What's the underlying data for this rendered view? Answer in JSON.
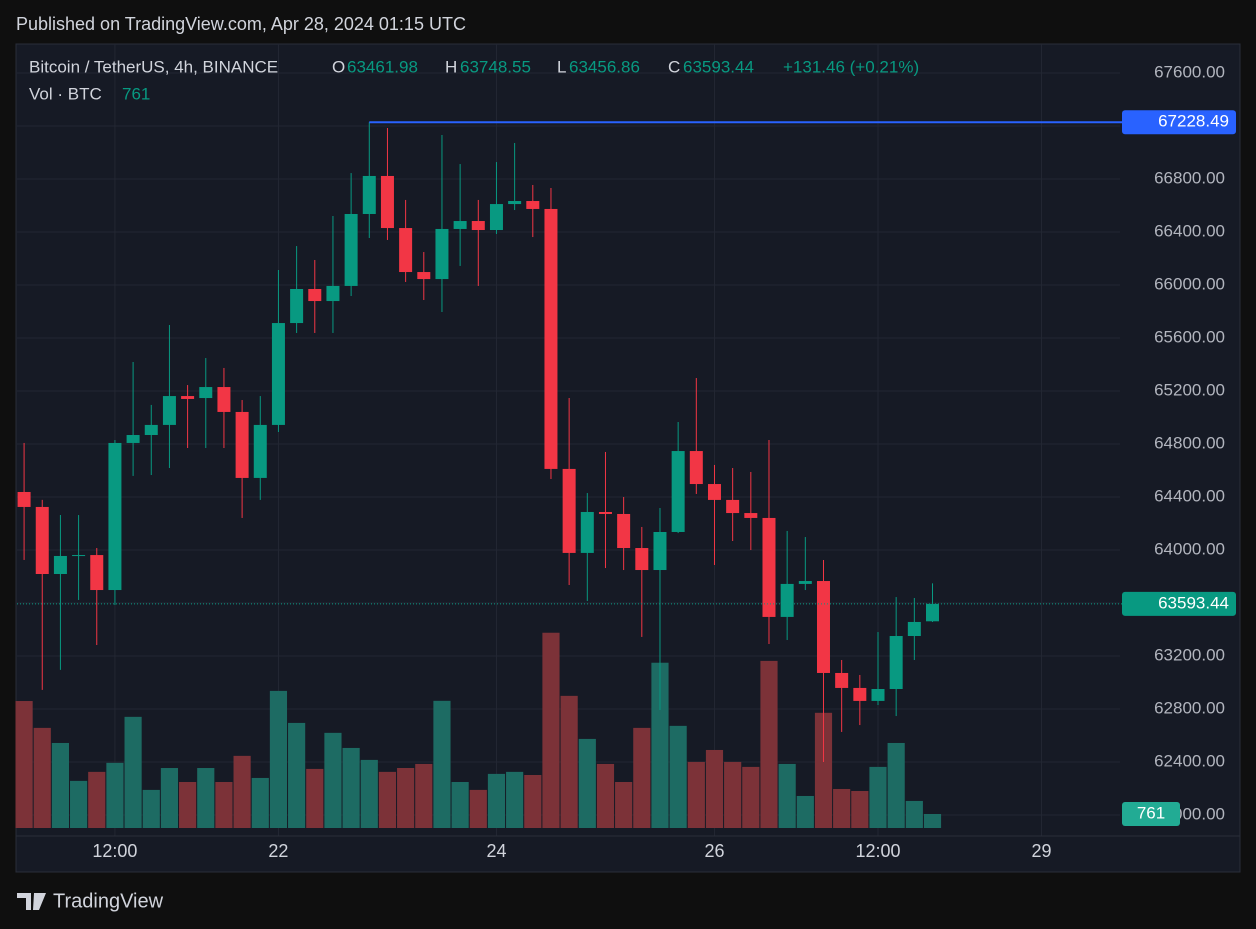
{
  "header": {
    "published": "Published on TradingView.com, Apr 28, 2024 01:15 UTC"
  },
  "footer": {
    "brand": "TradingView"
  },
  "chart_data": {
    "type": "candlestick",
    "symbol": "Bitcoin / TetherUS, 4h, BINANCE",
    "ohlc_letters": [
      "O",
      "H",
      "L",
      "C"
    ],
    "change_label": "+131.46 (+0.21%)",
    "volume_label": "Vol · BTC",
    "up_color": "#089981",
    "down_color": "#f23645",
    "volume_up_color": "#1d6b63",
    "volume_down_color": "#7c3238",
    "high_line_color": "#2962ff",
    "ohlc": [
      [
        64438,
        64808,
        63925,
        64325
      ],
      [
        64325,
        64378,
        62944,
        63819
      ],
      [
        63819,
        64264,
        63095,
        63955
      ],
      [
        63955,
        64264,
        63623,
        63962
      ],
      [
        63962,
        64015,
        63283,
        63698
      ],
      [
        63698,
        64830,
        63585,
        64808
      ],
      [
        64808,
        65419,
        64559,
        64868
      ],
      [
        64868,
        65095,
        64566,
        64944
      ],
      [
        64944,
        65698,
        64619,
        65162
      ],
      [
        65162,
        65245,
        64770,
        65140
      ],
      [
        65147,
        65449,
        64770,
        65230
      ],
      [
        65230,
        65374,
        64770,
        65042
      ],
      [
        65042,
        65132,
        64242,
        64544
      ],
      [
        64544,
        65162,
        64378,
        64944
      ],
      [
        64944,
        66113,
        64891,
        65713
      ],
      [
        65713,
        66294,
        65638,
        65970
      ],
      [
        65970,
        66189,
        65638,
        65879
      ],
      [
        65879,
        66521,
        65638,
        65993
      ],
      [
        65993,
        66845,
        65917,
        66536
      ],
      [
        66536,
        67228.49,
        66355,
        66823
      ],
      [
        66823,
        67185,
        66340,
        66430
      ],
      [
        66430,
        66642,
        66023,
        66098
      ],
      [
        66098,
        66249,
        65887,
        66045
      ],
      [
        66045,
        67132,
        65796,
        66423
      ],
      [
        66423,
        66913,
        66144,
        66483
      ],
      [
        66483,
        66642,
        65993,
        66415
      ],
      [
        66415,
        66928,
        66385,
        66611
      ],
      [
        66611,
        67072,
        66566,
        66634
      ],
      [
        66634,
        66755,
        66362,
        66574
      ],
      [
        66574,
        66732,
        64536,
        64612
      ],
      [
        64612,
        65147,
        63736,
        63978
      ],
      [
        63978,
        64430,
        63615,
        64287
      ],
      [
        64287,
        64740,
        63864,
        64272
      ],
      [
        64272,
        64400,
        63849,
        64015
      ],
      [
        64015,
        64174,
        63344,
        63849
      ],
      [
        63849,
        64317,
        62793,
        64136
      ],
      [
        64136,
        64966,
        64128,
        64747
      ],
      [
        64747,
        65298,
        64423,
        64498
      ],
      [
        64498,
        64642,
        63887,
        64378
      ],
      [
        64378,
        64619,
        64068,
        64279
      ],
      [
        64279,
        64589,
        64000,
        64242
      ],
      [
        64242,
        64830,
        63291,
        63495
      ],
      [
        63495,
        64144,
        63321,
        63744
      ],
      [
        63744,
        64098,
        63698,
        63766
      ],
      [
        63766,
        63925,
        62400,
        63072
      ],
      [
        63072,
        63170,
        62627,
        62959
      ],
      [
        62959,
        63057,
        62679,
        62861
      ],
      [
        62861,
        63381,
        62830,
        62951
      ],
      [
        62951,
        63645,
        62747,
        63351
      ],
      [
        63351,
        63638,
        63170,
        63457
      ],
      [
        63461.98,
        63748.55,
        63456.86,
        63593.44
      ]
    ],
    "volume": [
      6900,
      5440,
      4620,
      2560,
      3050,
      3540,
      6040,
      2070,
      3260,
      2500,
      3260,
      2500,
      3920,
      2720,
      7450,
      5710,
      3210,
      5170,
      4350,
      3700,
      3050,
      3260,
      3480,
      6910,
      2500,
      2070,
      2940,
      3050,
      2880,
      10610,
      7180,
      4840,
      3480,
      2500,
      5440,
      8980,
      5550,
      3590,
      4240,
      3590,
      3320,
      9080,
      3480,
      1740,
      6260,
      2120,
      2010,
      3320,
      4620,
      1470,
      761
    ],
    "ylim": [
      61902,
      67819
    ],
    "yticks": [
      {
        "value": 62000,
        "label": "62000.00"
      },
      {
        "value": 62400,
        "label": "62400.00"
      },
      {
        "value": 62800,
        "label": "62800.00"
      },
      {
        "value": 63200,
        "label": "63200.00"
      },
      {
        "value": 63600,
        "label": "63600.00"
      },
      {
        "value": 64000,
        "label": "64000.00"
      },
      {
        "value": 64400,
        "label": "64400.00"
      },
      {
        "value": 64800,
        "label": "64800.00"
      },
      {
        "value": 65200,
        "label": "65200.00"
      },
      {
        "value": 65600,
        "label": "65600.00"
      },
      {
        "value": 66000,
        "label": "66000.00"
      },
      {
        "value": 66400,
        "label": "66400.00"
      },
      {
        "value": 66800,
        "label": "66800.00"
      },
      {
        "value": 67200,
        "label": "67200.00"
      },
      {
        "value": 67600,
        "label": "67600.00"
      }
    ],
    "vlim": [
      0,
      42600
    ],
    "xlim": [
      -0.39,
      60.32
    ],
    "xticks": [
      {
        "value": 5,
        "label": "12:00"
      },
      {
        "value": 14,
        "label": "22"
      },
      {
        "value": 26,
        "label": "24"
      },
      {
        "value": 38,
        "label": "26"
      },
      {
        "value": 47,
        "label": "12:00"
      },
      {
        "value": 56,
        "label": "29"
      }
    ],
    "grid": true
  }
}
